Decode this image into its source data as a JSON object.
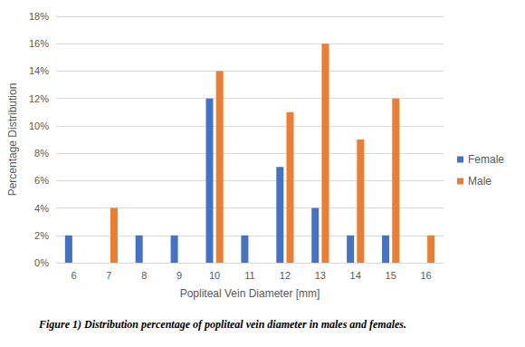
{
  "chart_data": {
    "type": "bar",
    "title": "Figure 1) Distribution percentage of popliteal vein diameter in males and females.",
    "x_label": "Popliteal Vein Diameter [mm]",
    "y_label": "Percentage Distribution",
    "categories": [
      "6",
      "7",
      "8",
      "9",
      "10",
      "11",
      "12",
      "13",
      "14",
      "15",
      "16"
    ],
    "series": [
      {
        "name": "Female",
        "color": "#4472c4",
        "values": [
          2,
          null,
          2,
          2,
          12,
          2,
          7,
          4,
          2,
          2,
          null
        ]
      },
      {
        "name": "Male",
        "color": "#ed7d31",
        "values": [
          null,
          4,
          null,
          null,
          14,
          null,
          11,
          16,
          9,
          12,
          2
        ]
      }
    ],
    "ylim": [
      0,
      18
    ],
    "yticks": [
      {
        "value": 0,
        "label": "0%"
      },
      {
        "value": 2,
        "label": "2%"
      },
      {
        "value": 4,
        "label": "4%"
      },
      {
        "value": 6,
        "label": "6%"
      },
      {
        "value": 8,
        "label": "8%"
      },
      {
        "value": 10,
        "label": "10%"
      },
      {
        "value": 12,
        "label": "12%"
      },
      {
        "value": 14,
        "label": "14%"
      },
      {
        "value": 16,
        "label": "16%"
      },
      {
        "value": 18,
        "label": "18%"
      }
    ],
    "grid": true,
    "legend": "right"
  }
}
